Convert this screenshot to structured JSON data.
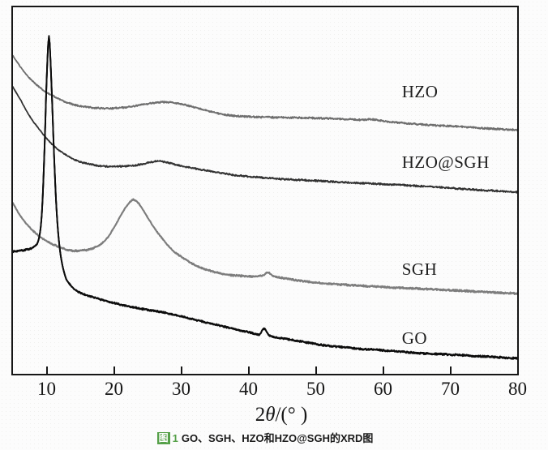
{
  "figure": {
    "xlabel_parts": {
      "pre": "2",
      "theta": "θ",
      "post": "/(° )"
    },
    "caption": {
      "marker": "图",
      "number": "1",
      "text": "GO、SGH、HZO和HZO@SGH的XRD图",
      "accent_color": "#55a048"
    }
  },
  "chart_data": {
    "type": "line",
    "title": "",
    "xlabel": "2θ/(° )",
    "ylabel": "",
    "xlim": [
      5,
      80
    ],
    "ylim": [
      0,
      100
    ],
    "y_units": "intensity (a.u., normalized 0-100, curves offset)",
    "grid": false,
    "legend_position": "inline labels right of plot center",
    "x_ticks": [
      10,
      20,
      30,
      40,
      50,
      60,
      70,
      80
    ],
    "frame_color": "#161616",
    "series": [
      {
        "name": "HZO",
        "color": "#6e6e6e",
        "label_at": [
          62.8,
          76.8
        ],
        "peaks_2theta": [
          30
        ],
        "points": [
          [
            5,
            86.8
          ],
          [
            6.2,
            83.5
          ],
          [
            7.4,
            80.8
          ],
          [
            9.2,
            77.8
          ],
          [
            11,
            75.8
          ],
          [
            12.8,
            74.2
          ],
          [
            14.6,
            73.2
          ],
          [
            16.4,
            72.7
          ],
          [
            18.8,
            72.4
          ],
          [
            21.2,
            72.6
          ],
          [
            23.6,
            73.2
          ],
          [
            25.4,
            73.8
          ],
          [
            27.2,
            74.1
          ],
          [
            29,
            73.9
          ],
          [
            31.4,
            73.0
          ],
          [
            33.8,
            71.8
          ],
          [
            36.2,
            70.8
          ],
          [
            38.6,
            70.3
          ],
          [
            41,
            70.1
          ],
          [
            43.4,
            70.0
          ],
          [
            46.4,
            69.9
          ],
          [
            49.4,
            69.8
          ],
          [
            53,
            69.6
          ],
          [
            56.6,
            69.3
          ],
          [
            58.4,
            69.4
          ],
          [
            60.8,
            68.8
          ],
          [
            63.8,
            68.3
          ],
          [
            67.4,
            67.8
          ],
          [
            71,
            67.5
          ],
          [
            74,
            67.1
          ],
          [
            77,
            66.8
          ],
          [
            80,
            66.5
          ]
        ]
      },
      {
        "name": "HZO@SGH",
        "color": "#323232",
        "label_at": [
          62.8,
          57.6
        ],
        "peaks_2theta": [
          26.6
        ],
        "points": [
          [
            5,
            78.2
          ],
          [
            6.2,
            74.5
          ],
          [
            7.4,
            70.5
          ],
          [
            9.2,
            66.0
          ],
          [
            11,
            62.3
          ],
          [
            12.8,
            59.8
          ],
          [
            14.6,
            58.1
          ],
          [
            16.4,
            57.2
          ],
          [
            18.8,
            56.6
          ],
          [
            21.2,
            56.6
          ],
          [
            23.6,
            57.0
          ],
          [
            25.4,
            57.7
          ],
          [
            26.6,
            58.0
          ],
          [
            27.8,
            57.7
          ],
          [
            29.6,
            56.9
          ],
          [
            32,
            56.0
          ],
          [
            35,
            55.1
          ],
          [
            38,
            54.2
          ],
          [
            41.6,
            53.6
          ],
          [
            45.2,
            53.1
          ],
          [
            48.8,
            52.8
          ],
          [
            53.6,
            52.3
          ],
          [
            58.4,
            51.9
          ],
          [
            62.6,
            51.5
          ],
          [
            67.4,
            51.0
          ],
          [
            72.2,
            50.4
          ],
          [
            75.8,
            50.0
          ],
          [
            80,
            49.6
          ]
        ]
      },
      {
        "name": "SGH",
        "color": "#7d7d7d",
        "label_at": [
          62.8,
          28.3
        ],
        "peaks_2theta": [
          23.0,
          42.9
        ],
        "points": [
          [
            5,
            46.6
          ],
          [
            6.2,
            42.8
          ],
          [
            8,
            39.0
          ],
          [
            9.8,
            36.4
          ],
          [
            11.6,
            34.8
          ],
          [
            13.4,
            33.7
          ],
          [
            15.2,
            33.6
          ],
          [
            17,
            34.3
          ],
          [
            18.8,
            36.6
          ],
          [
            20.2,
            40.5
          ],
          [
            21.4,
            44.4
          ],
          [
            22.4,
            46.9
          ],
          [
            23.0,
            47.4
          ],
          [
            23.8,
            46.2
          ],
          [
            24.8,
            43.3
          ],
          [
            26,
            39.8
          ],
          [
            27.2,
            36.9
          ],
          [
            28.6,
            33.9
          ],
          [
            30.2,
            31.7
          ],
          [
            32,
            29.7
          ],
          [
            33.8,
            28.4
          ],
          [
            35.6,
            27.5
          ],
          [
            37.4,
            26.9
          ],
          [
            39.2,
            26.7
          ],
          [
            41,
            26.5
          ],
          [
            42.2,
            26.9
          ],
          [
            42.9,
            27.7
          ],
          [
            43.6,
            26.8
          ],
          [
            45.2,
            26.1
          ],
          [
            47.6,
            25.4
          ],
          [
            51.2,
            24.7
          ],
          [
            56,
            24.1
          ],
          [
            60.8,
            23.6
          ],
          [
            65.6,
            23.2
          ],
          [
            70.4,
            22.8
          ],
          [
            75.2,
            22.3
          ],
          [
            80,
            21.9
          ]
        ]
      },
      {
        "name": "GO",
        "color": "#0c0c0c",
        "label_at": [
          62.8,
          9.6
        ],
        "peaks_2theta": [
          10.35,
          42.3
        ],
        "points": [
          [
            5,
            33.4
          ],
          [
            6.8,
            33.8
          ],
          [
            8,
            34.5
          ],
          [
            8.8,
            36.5
          ],
          [
            9.3,
            44
          ],
          [
            9.7,
            62
          ],
          [
            10.0,
            80
          ],
          [
            10.35,
            92.0
          ],
          [
            10.7,
            80
          ],
          [
            11.1,
            60
          ],
          [
            11.5,
            44
          ],
          [
            12,
            33.5
          ],
          [
            12.7,
            27.0
          ],
          [
            13.5,
            24.3
          ],
          [
            14.7,
            22.4
          ],
          [
            16.4,
            21.2
          ],
          [
            18.8,
            19.9
          ],
          [
            21.2,
            18.8
          ],
          [
            24.2,
            17.7
          ],
          [
            27.2,
            16.8
          ],
          [
            30.8,
            15.3
          ],
          [
            34.4,
            13.7
          ],
          [
            38,
            12.2
          ],
          [
            40.4,
            11.2
          ],
          [
            41.6,
            10.7
          ],
          [
            42.3,
            12.4
          ],
          [
            43.1,
            10.5
          ],
          [
            44.6,
            9.8
          ],
          [
            47.6,
            8.9
          ],
          [
            51.2,
            7.8
          ],
          [
            56,
            6.9
          ],
          [
            60.8,
            6.3
          ],
          [
            65.6,
            5.6
          ],
          [
            70.4,
            5.2
          ],
          [
            75.2,
            4.7
          ],
          [
            80,
            4.2
          ]
        ]
      }
    ]
  }
}
